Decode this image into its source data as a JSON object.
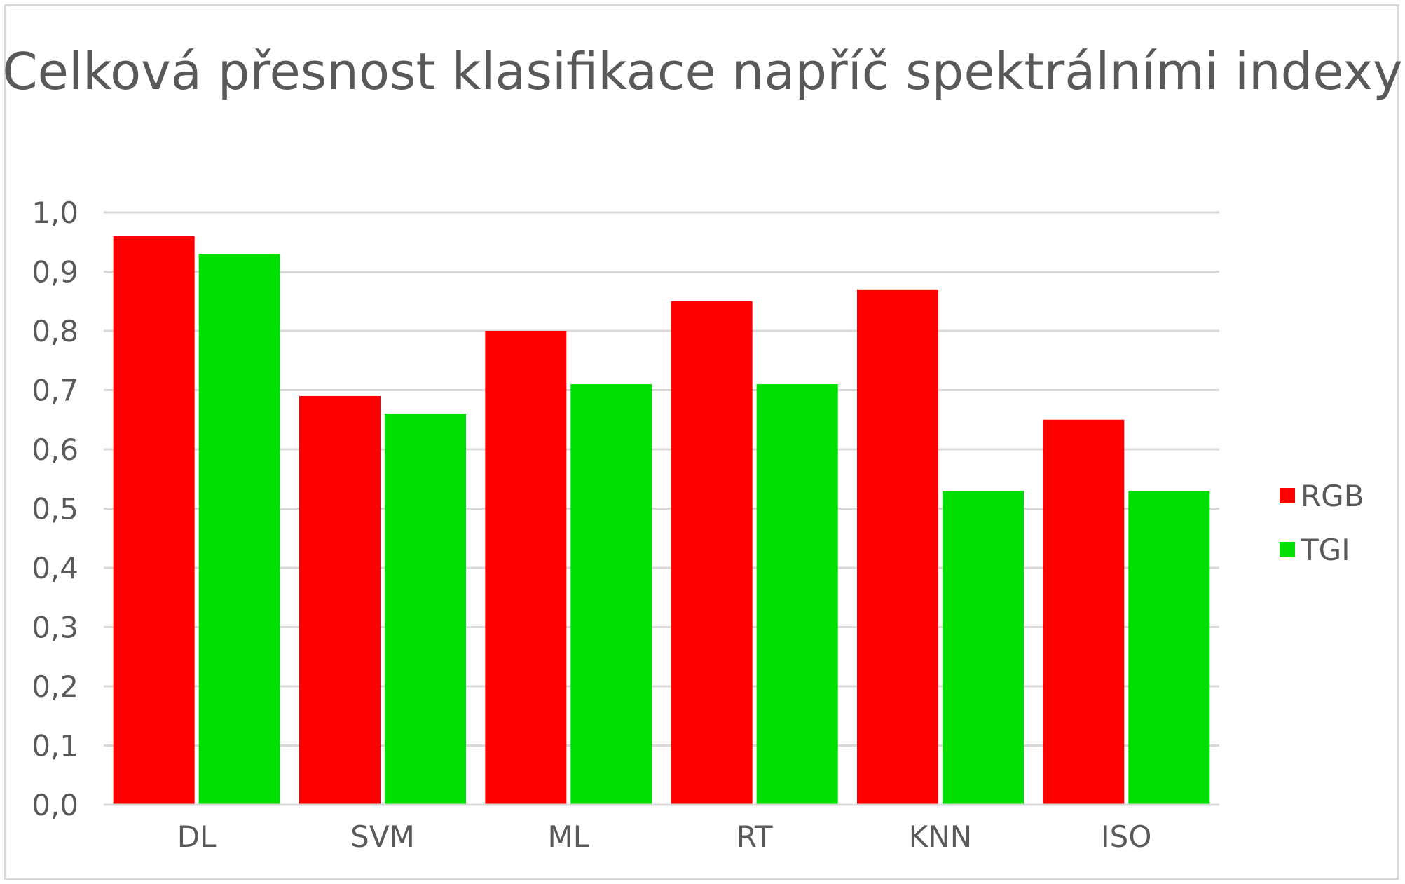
{
  "chart_data": {
    "type": "bar",
    "title": "Celková přesnost klasifikace napříč spektrálními indexy",
    "categories": [
      "DL",
      "SVM",
      "ML",
      "RT",
      "KNN",
      "ISO"
    ],
    "series": [
      {
        "name": "RGB",
        "color": "#ff0000",
        "values": [
          0.96,
          0.69,
          0.8,
          0.85,
          0.87,
          0.65
        ]
      },
      {
        "name": "TGI",
        "color": "#00e000",
        "values": [
          0.93,
          0.66,
          0.71,
          0.71,
          0.53,
          0.53
        ]
      }
    ],
    "ylim": [
      0,
      1
    ],
    "yticks": [
      0,
      0.1,
      0.2,
      0.3,
      0.4,
      0.5,
      0.6,
      0.7,
      0.8,
      0.9,
      1.0
    ],
    "ytick_labels": [
      "0,0",
      "0,1",
      "0,2",
      "0,3",
      "0,4",
      "0,5",
      "0,6",
      "0,7",
      "0,8",
      "0,9",
      "1,0"
    ],
    "grid": true,
    "legend_position": "right"
  }
}
